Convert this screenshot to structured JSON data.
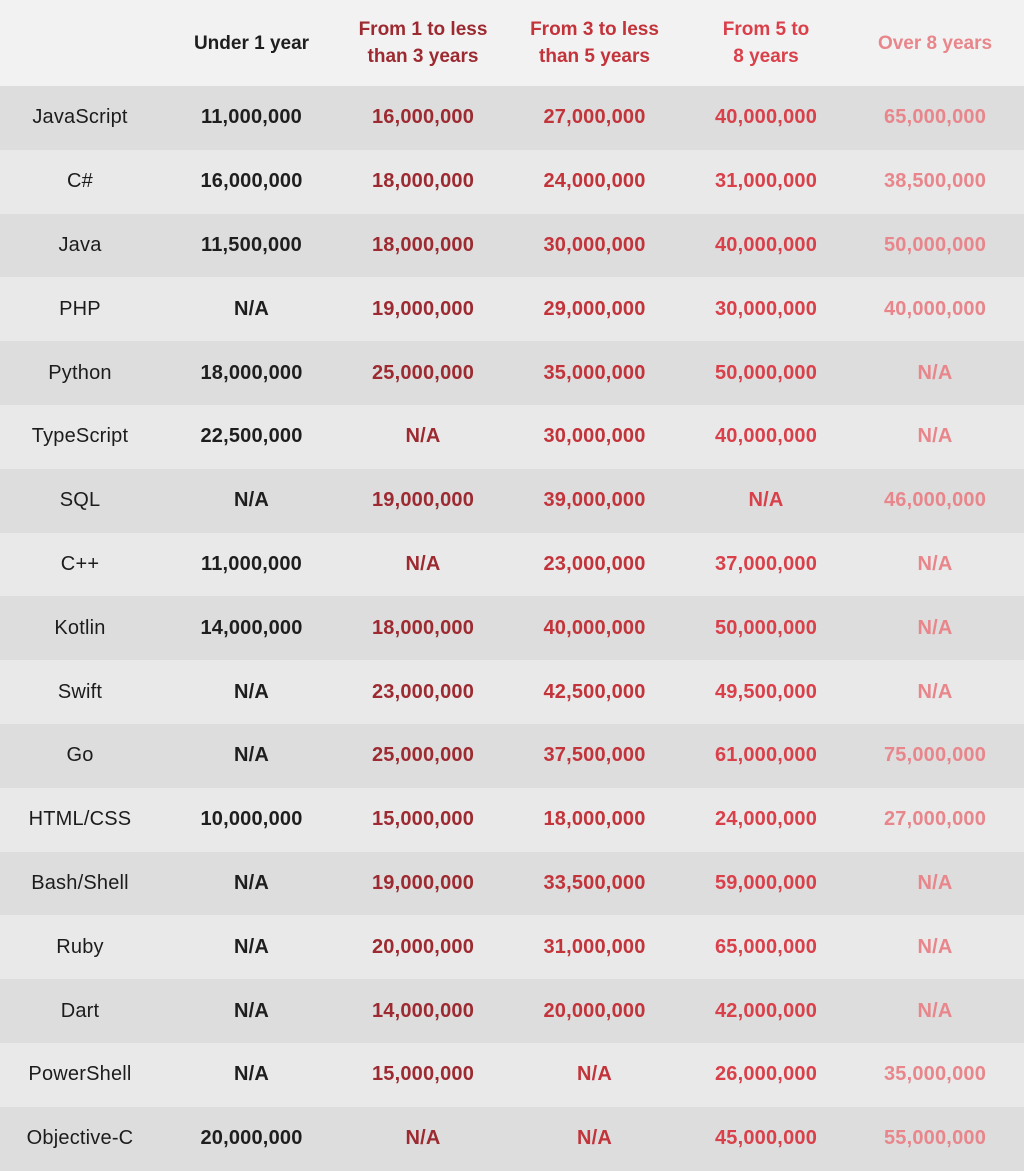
{
  "table": {
    "headers": [
      "",
      "Under 1 year",
      "From 1 to less\nthan 3 years",
      "From 3 to less\nthan 5 years",
      "From 5 to\n8 years",
      "Over 8 years"
    ],
    "rows": [
      {
        "language": "JavaScript",
        "values": [
          "11,000,000",
          "16,000,000",
          "27,000,000",
          "40,000,000",
          "65,000,000"
        ]
      },
      {
        "language": "C#",
        "values": [
          "16,000,000",
          "18,000,000",
          "24,000,000",
          "31,000,000",
          "38,500,000"
        ]
      },
      {
        "language": "Java",
        "values": [
          "11,500,000",
          "18,000,000",
          "30,000,000",
          "40,000,000",
          "50,000,000"
        ]
      },
      {
        "language": "PHP",
        "values": [
          "N/A",
          "19,000,000",
          "29,000,000",
          "30,000,000",
          "40,000,000"
        ]
      },
      {
        "language": "Python",
        "values": [
          "18,000,000",
          "25,000,000",
          "35,000,000",
          "50,000,000",
          "N/A"
        ]
      },
      {
        "language": "TypeScript",
        "values": [
          "22,500,000",
          "N/A",
          "30,000,000",
          "40,000,000",
          "N/A"
        ]
      },
      {
        "language": "SQL",
        "values": [
          "N/A",
          "19,000,000",
          "39,000,000",
          "N/A",
          "46,000,000"
        ]
      },
      {
        "language": "C++",
        "values": [
          "11,000,000",
          "N/A",
          "23,000,000",
          "37,000,000",
          "N/A"
        ]
      },
      {
        "language": "Kotlin",
        "values": [
          "14,000,000",
          "18,000,000",
          "40,000,000",
          "50,000,000",
          "N/A"
        ]
      },
      {
        "language": "Swift",
        "values": [
          "N/A",
          "23,000,000",
          "42,500,000",
          "49,500,000",
          "N/A"
        ]
      },
      {
        "language": "Go",
        "values": [
          "N/A",
          "25,000,000",
          "37,500,000",
          "61,000,000",
          "75,000,000"
        ]
      },
      {
        "language": "HTML/CSS",
        "values": [
          "10,000,000",
          "15,000,000",
          "18,000,000",
          "24,000,000",
          "27,000,000"
        ]
      },
      {
        "language": "Bash/Shell",
        "values": [
          "N/A",
          "19,000,000",
          "33,500,000",
          "59,000,000",
          "N/A"
        ]
      },
      {
        "language": "Ruby",
        "values": [
          "N/A",
          "20,000,000",
          "31,000,000",
          "65,000,000",
          "N/A"
        ]
      },
      {
        "language": "Dart",
        "values": [
          "N/A",
          "14,000,000",
          "20,000,000",
          "42,000,000",
          "N/A"
        ]
      },
      {
        "language": "PowerShell",
        "values": [
          "N/A",
          "15,000,000",
          "N/A",
          "26,000,000",
          "35,000,000"
        ]
      },
      {
        "language": "Objective-C",
        "values": [
          "20,000,000",
          "N/A",
          "N/A",
          "45,000,000",
          "55,000,000"
        ]
      }
    ]
  },
  "colors": {
    "column_1": "#1e1e1e",
    "column_2": "#9c2a30",
    "column_3": "#c2333a",
    "column_4": "#d9404a",
    "column_5": "#e8868b",
    "row_band_dark": "#dddddd",
    "row_band_light": "#e9e9e9"
  }
}
